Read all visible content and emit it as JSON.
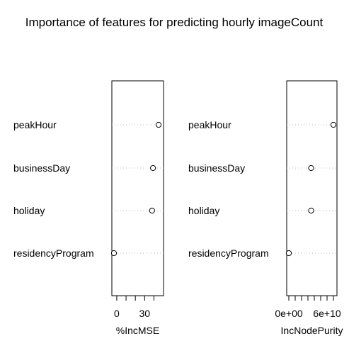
{
  "title": "Importance of features for predicting hourly imageCount",
  "chart_data": [
    {
      "type": "scatter",
      "variant": "dotchart",
      "features": [
        "peakHour",
        "businessDay",
        "holiday",
        "residencyProgram"
      ],
      "values": [
        45,
        39,
        38,
        -3
      ],
      "xlabel": "%IncMSE",
      "xlim": [
        -3,
        45
      ],
      "ticks": [
        0,
        10,
        20,
        30,
        40
      ],
      "tick_labels": [
        "0",
        "",
        "",
        "30",
        ""
      ]
    },
    {
      "type": "scatter",
      "variant": "dotchart",
      "features": [
        "peakHour",
        "businessDay",
        "holiday",
        "residencyProgram"
      ],
      "values": [
        70000000000,
        35000000000,
        35000000000,
        0
      ],
      "xlabel": "IncNodePurity",
      "xlim": [
        0,
        70000000000
      ],
      "ticks": [
        0,
        10000000000,
        20000000000,
        30000000000,
        40000000000,
        50000000000,
        60000000000,
        70000000000
      ],
      "tick_labels": [
        "0e+00",
        "",
        "",
        "",
        "",
        "",
        "6e+10",
        ""
      ]
    }
  ]
}
